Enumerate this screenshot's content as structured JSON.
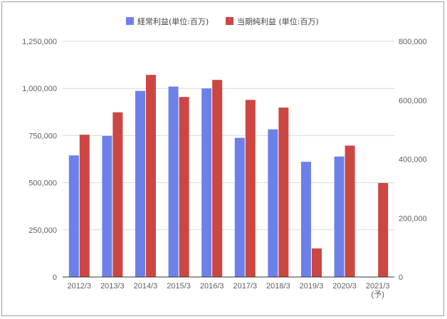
{
  "chart_data": {
    "type": "bar",
    "categories": [
      "2012/3",
      "2013/3",
      "2014/3",
      "2015/3",
      "2016/3",
      "2017/3",
      "2018/3",
      "2019/3",
      "2020/3",
      "2021/3\n(予)"
    ],
    "legend_position": "top-center",
    "grid": true,
    "series": [
      {
        "name": "経常利益(単位:百万)",
        "axis": "left",
        "color": "#6d80ea",
        "values": [
          645000,
          748000,
          987000,
          1010000,
          1000000,
          738000,
          783000,
          611000,
          639000,
          null
        ]
      },
      {
        "name": "当期純利益 (単位:百万)",
        "axis": "right",
        "color": "#cc4642",
        "values": [
          483000,
          559000,
          686000,
          611000,
          669000,
          601000,
          575000,
          97000,
          446000,
          319000
        ]
      }
    ],
    "y_left": {
      "ylim": [
        0,
        1250000
      ],
      "ticks": [
        0,
        250000,
        500000,
        750000,
        1000000,
        1250000
      ],
      "tick_labels": [
        "0",
        "250,000",
        "500,000",
        "750,000",
        "1,000,000",
        "1,250,000"
      ]
    },
    "y_right": {
      "ylim": [
        0,
        800000
      ],
      "ticks": [
        0,
        200000,
        400000,
        600000,
        800000
      ],
      "tick_labels": [
        "0",
        "200,000",
        "400,000",
        "600,000",
        "800,000"
      ]
    }
  }
}
